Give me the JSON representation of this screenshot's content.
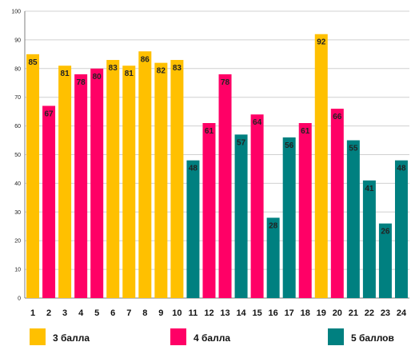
{
  "chart_data": {
    "type": "bar",
    "categories": [
      "1",
      "2",
      "3",
      "4",
      "5",
      "6",
      "7",
      "8",
      "9",
      "10",
      "11",
      "12",
      "13",
      "14",
      "15",
      "16",
      "17",
      "18",
      "19",
      "20",
      "21",
      "22",
      "23",
      "24"
    ],
    "values": [
      85,
      67,
      81,
      78,
      80,
      83,
      81,
      86,
      82,
      83,
      48,
      61,
      78,
      57,
      64,
      28,
      56,
      61,
      92,
      66,
      55,
      41,
      26,
      48
    ],
    "groups": [
      "3 балла",
      "4 балла",
      "3 балла",
      "4 балла",
      "4 балла",
      "3 балла",
      "3 балла",
      "3 балла",
      "3 балла",
      "3 балла",
      "5 баллов",
      "4 балла",
      "4 балла",
      "5 баллов",
      "4 балла",
      "5 баллов",
      "5 баллов",
      "4 балла",
      "3 балла",
      "4 балла",
      "5 баллов",
      "5 баллов",
      "5 баллов",
      "5 баллов"
    ],
    "yticks": [
      "0",
      "10",
      "20",
      "30",
      "40",
      "50",
      "60",
      "70",
      "80",
      "90",
      "100"
    ],
    "ylim": [
      0,
      100
    ],
    "grid": true,
    "legend": {
      "placement": "bottom",
      "items": [
        {
          "label": "3 балла",
          "color": "#FFC000"
        },
        {
          "label": "4 балла",
          "color": "#FF0066"
        },
        {
          "label": "5 баллов",
          "color": "#008080"
        }
      ]
    }
  }
}
